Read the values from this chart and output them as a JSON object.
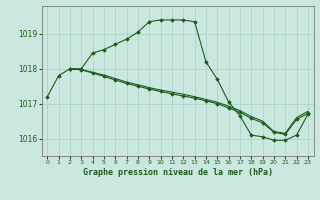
{
  "title": "Graphe pression niveau de la mer (hPa)",
  "bg_color": "#cbe8e0",
  "grid_color": "#a8d5c8",
  "line_color": "#1a5c1a",
  "marker_color": "#1a5c1a",
  "xlim": [
    -0.5,
    23.5
  ],
  "ylim": [
    1015.5,
    1019.8
  ],
  "yticks": [
    1016,
    1017,
    1018,
    1019
  ],
  "xticks": [
    0,
    1,
    2,
    3,
    4,
    5,
    6,
    7,
    8,
    9,
    10,
    11,
    12,
    13,
    14,
    15,
    16,
    17,
    18,
    19,
    20,
    21,
    22,
    23
  ],
  "series": [
    {
      "x": [
        0,
        1,
        2,
        3,
        4,
        5,
        6,
        7,
        8,
        9,
        10,
        11,
        12,
        13,
        14,
        15,
        16,
        17,
        18,
        19,
        20,
        21,
        22,
        23
      ],
      "y": [
        1017.2,
        1017.8,
        1018.0,
        1018.0,
        1018.45,
        1018.55,
        1018.7,
        1018.85,
        1019.05,
        1019.35,
        1019.4,
        1019.4,
        1019.4,
        1019.35,
        1018.2,
        1017.7,
        1017.05,
        1016.65,
        1016.1,
        1016.05,
        1015.95,
        1015.95,
        1016.1,
        1016.7
      ],
      "marker": true
    },
    {
      "x": [
        2,
        3,
        4,
        5,
        6,
        7,
        8,
        9,
        10,
        11,
        12,
        13,
        14,
        15,
        16,
        17,
        18,
        19,
        20,
        21,
        22,
        23
      ],
      "y": [
        1018.0,
        1017.97,
        1017.88,
        1017.78,
        1017.68,
        1017.58,
        1017.5,
        1017.42,
        1017.35,
        1017.28,
        1017.22,
        1017.16,
        1017.08,
        1017.0,
        1016.88,
        1016.75,
        1016.58,
        1016.45,
        1016.18,
        1016.12,
        1016.55,
        1016.72
      ],
      "marker": true
    },
    {
      "x": [
        2,
        3,
        4,
        5,
        6,
        7,
        8,
        9,
        10,
        11,
        12,
        13,
        14,
        15,
        16,
        17,
        18,
        19,
        20,
        21,
        22,
        23
      ],
      "y": [
        1018.0,
        1017.98,
        1017.9,
        1017.82,
        1017.72,
        1017.62,
        1017.54,
        1017.46,
        1017.39,
        1017.33,
        1017.27,
        1017.2,
        1017.12,
        1017.04,
        1016.93,
        1016.8,
        1016.63,
        1016.5,
        1016.2,
        1016.15,
        1016.6,
        1016.78
      ],
      "marker": false
    }
  ]
}
